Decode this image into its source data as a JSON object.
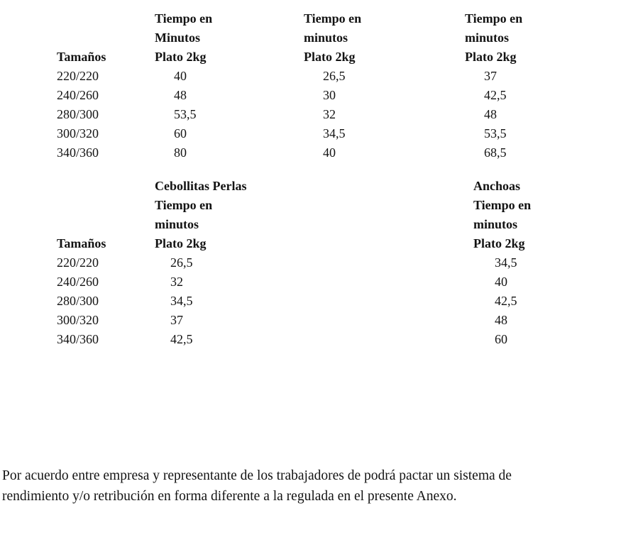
{
  "page": {
    "background_color": "#ffffff",
    "text_color": "#131313"
  },
  "tables": [
    {
      "size_header": "Tamaños",
      "columns": [
        {
          "header_lines": [
            "Tiempo en",
            "Minutos",
            "Plato 2kg"
          ]
        },
        {
          "header_lines": [
            "Tiempo en",
            "minutos",
            "Plato 2kg"
          ]
        },
        {
          "header_lines": [
            "Tiempo en",
            "minutos",
            "Plato 2kg"
          ]
        }
      ],
      "rows": [
        {
          "size": "220/220",
          "values": [
            "40",
            "26,5",
            "37"
          ]
        },
        {
          "size": "240/260",
          "values": [
            "48",
            "30",
            "42,5"
          ]
        },
        {
          "size": "280/300",
          "values": [
            "53,5",
            "32",
            "48"
          ]
        },
        {
          "size": "300/320",
          "values": [
            "60",
            "34,5",
            "53,5"
          ]
        },
        {
          "size": "340/360",
          "values": [
            "80",
            "40",
            "68,5"
          ]
        }
      ]
    },
    {
      "size_header": "Tamaños",
      "columns": [
        {
          "header_lines": [
            "Cebollitas Perlas",
            "Tiempo en",
            "minutos",
            "Plato 2kg"
          ]
        },
        {
          "header_lines": []
        },
        {
          "header_lines": [
            "Anchoas",
            "Tiempo en",
            "minutos",
            "Plato 2kg"
          ]
        }
      ],
      "rows": [
        {
          "size": "220/220",
          "values": [
            "26,5",
            "",
            "34,5"
          ]
        },
        {
          "size": "240/260",
          "values": [
            "32",
            "",
            "40"
          ]
        },
        {
          "size": "280/300",
          "values": [
            "34,5",
            "",
            "42,5"
          ]
        },
        {
          "size": "300/320",
          "values": [
            "37",
            "",
            "48"
          ]
        },
        {
          "size": "340/360",
          "values": [
            "42,5",
            "",
            "60"
          ]
        }
      ]
    }
  ],
  "footer_paragraph": {
    "lines": [
      "Por acuerdo entre empresa y representante de los trabajadores de podrá pactar un sistema de",
      "rendimiento y/o retribución en forma diferente a la regulada en el presente Anexo."
    ]
  }
}
